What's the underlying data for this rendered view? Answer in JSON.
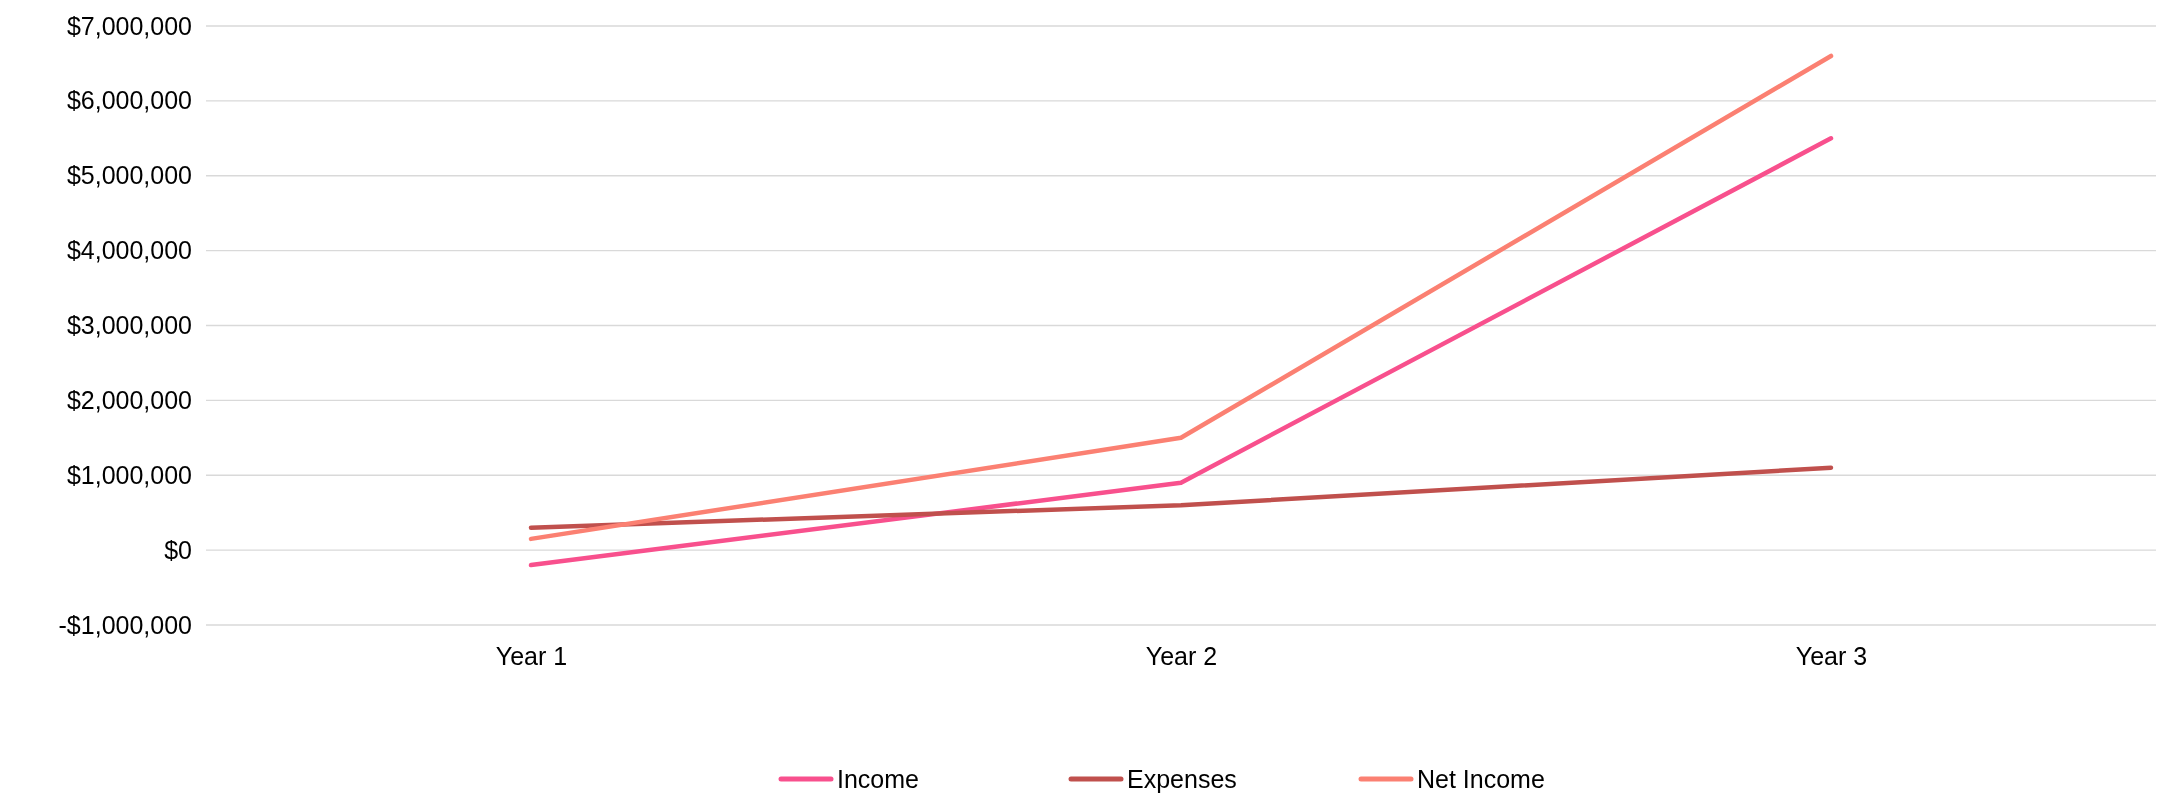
{
  "chart_data": {
    "type": "line",
    "categories": [
      "Year 1",
      "Year 2",
      "Year 3"
    ],
    "series": [
      {
        "name": "Income",
        "color": "#f8508d",
        "values": [
          -200000,
          900000,
          5500000
        ]
      },
      {
        "name": "Expenses",
        "color": "#c0504d",
        "values": [
          300000,
          600000,
          1100000
        ]
      },
      {
        "name": "Net Income",
        "color": "#fb8072",
        "values": [
          150000,
          1500000,
          6600000
        ]
      }
    ],
    "ylim": [
      -1000000,
      7000000
    ],
    "yticks": [
      {
        "value": -1000000,
        "label": "-$1,000,000"
      },
      {
        "value": 0,
        "label": "$0"
      },
      {
        "value": 1000000,
        "label": "$1,000,000"
      },
      {
        "value": 2000000,
        "label": "$2,000,000"
      },
      {
        "value": 3000000,
        "label": "$3,000,000"
      },
      {
        "value": 4000000,
        "label": "$4,000,000"
      },
      {
        "value": 5000000,
        "label": "$5,000,000"
      },
      {
        "value": 6000000,
        "label": "$6,000,000"
      },
      {
        "value": 7000000,
        "label": "$7,000,000"
      }
    ],
    "grid": "y",
    "legend": "bottom",
    "line_style": "solid"
  }
}
